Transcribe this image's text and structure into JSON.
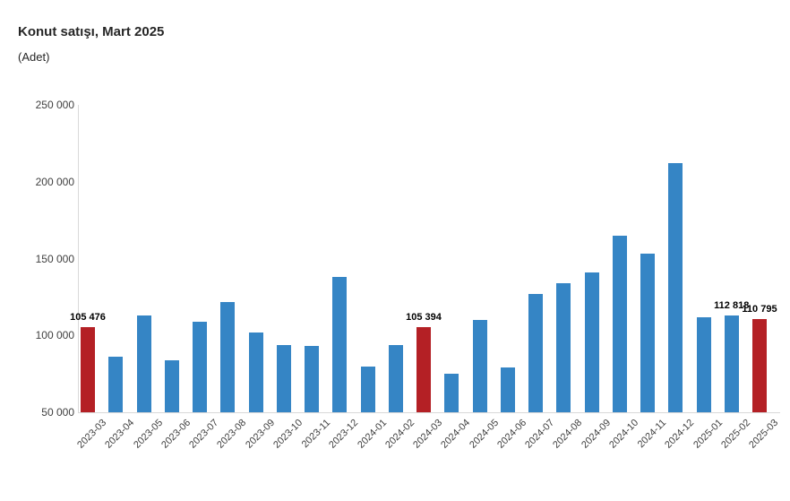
{
  "header": {
    "title": "Konut satışı, Mart 2025",
    "subtitle": "(Adet)"
  },
  "colors": {
    "bar_default": "#3585c5",
    "bar_highlight": "#b42025",
    "axis_line": "#d9d9d9",
    "tick_text": "#404040",
    "data_label_text": "#000000",
    "title_text": "#262626"
  },
  "chart_data": {
    "type": "bar",
    "title": "Konut satışı, Mart 2025",
    "subtitle": "(Adet)",
    "xlabel": "",
    "ylabel": "",
    "ylim": [
      50000,
      250000
    ],
    "yticks": [
      50000,
      100000,
      150000,
      200000,
      250000
    ],
    "ytick_labels": [
      "50 000",
      "100 000",
      "150 000",
      "200 000",
      "250 000"
    ],
    "grid": false,
    "legend": false,
    "categories": [
      "2023-03",
      "2023-04",
      "2023-05",
      "2023-06",
      "2023-07",
      "2023-08",
      "2023-09",
      "2023-10",
      "2023-11",
      "2023-12",
      "2024-01",
      "2024-02",
      "2024-03",
      "2024-04",
      "2024-05",
      "2024-06",
      "2024-07",
      "2024-08",
      "2024-09",
      "2024-10",
      "2024-11",
      "2024-12",
      "2025-01",
      "2025-02",
      "2025-03"
    ],
    "values": [
      105476,
      86000,
      113000,
      84000,
      109000,
      122000,
      102000,
      94000,
      93000,
      138000,
      80000,
      94000,
      105394,
      75000,
      110000,
      79000,
      127000,
      134000,
      141000,
      165000,
      153000,
      212000,
      112000,
      112818,
      110795
    ],
    "highlighted_indices": [
      0,
      12,
      24
    ],
    "point_labels": [
      {
        "index": 0,
        "text": "105 476"
      },
      {
        "index": 12,
        "text": "105 394"
      },
      {
        "index": 23,
        "text": "112 818"
      },
      {
        "index": 24,
        "text": "110 795"
      }
    ]
  }
}
